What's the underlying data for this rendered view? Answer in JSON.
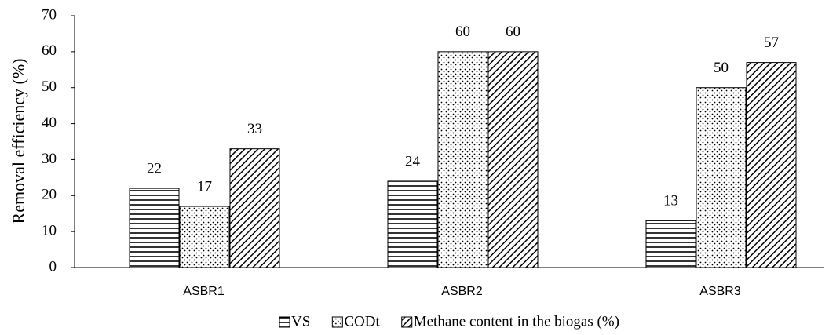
{
  "chart_data": {
    "type": "bar",
    "y_label": "Removal efficiency (%)",
    "categories": [
      "ASBR1",
      "ASBR2",
      "ASBR3"
    ],
    "series": [
      {
        "name": "VS",
        "color": "#000000",
        "pattern": "horizontal",
        "values": [
          22,
          24,
          13
        ]
      },
      {
        "name": "CODt",
        "color": "#000000",
        "pattern": "dots",
        "values": [
          17,
          60,
          50
        ]
      },
      {
        "name": "Methane content in the biogas (%)",
        "color": "#000000",
        "pattern": "diagonal",
        "values": [
          33,
          60,
          57
        ]
      }
    ],
    "ylim": [
      0,
      70
    ],
    "yticks": [
      0,
      10,
      20,
      30,
      40,
      50,
      60,
      70
    ],
    "grid": false,
    "legend": "bottom"
  }
}
